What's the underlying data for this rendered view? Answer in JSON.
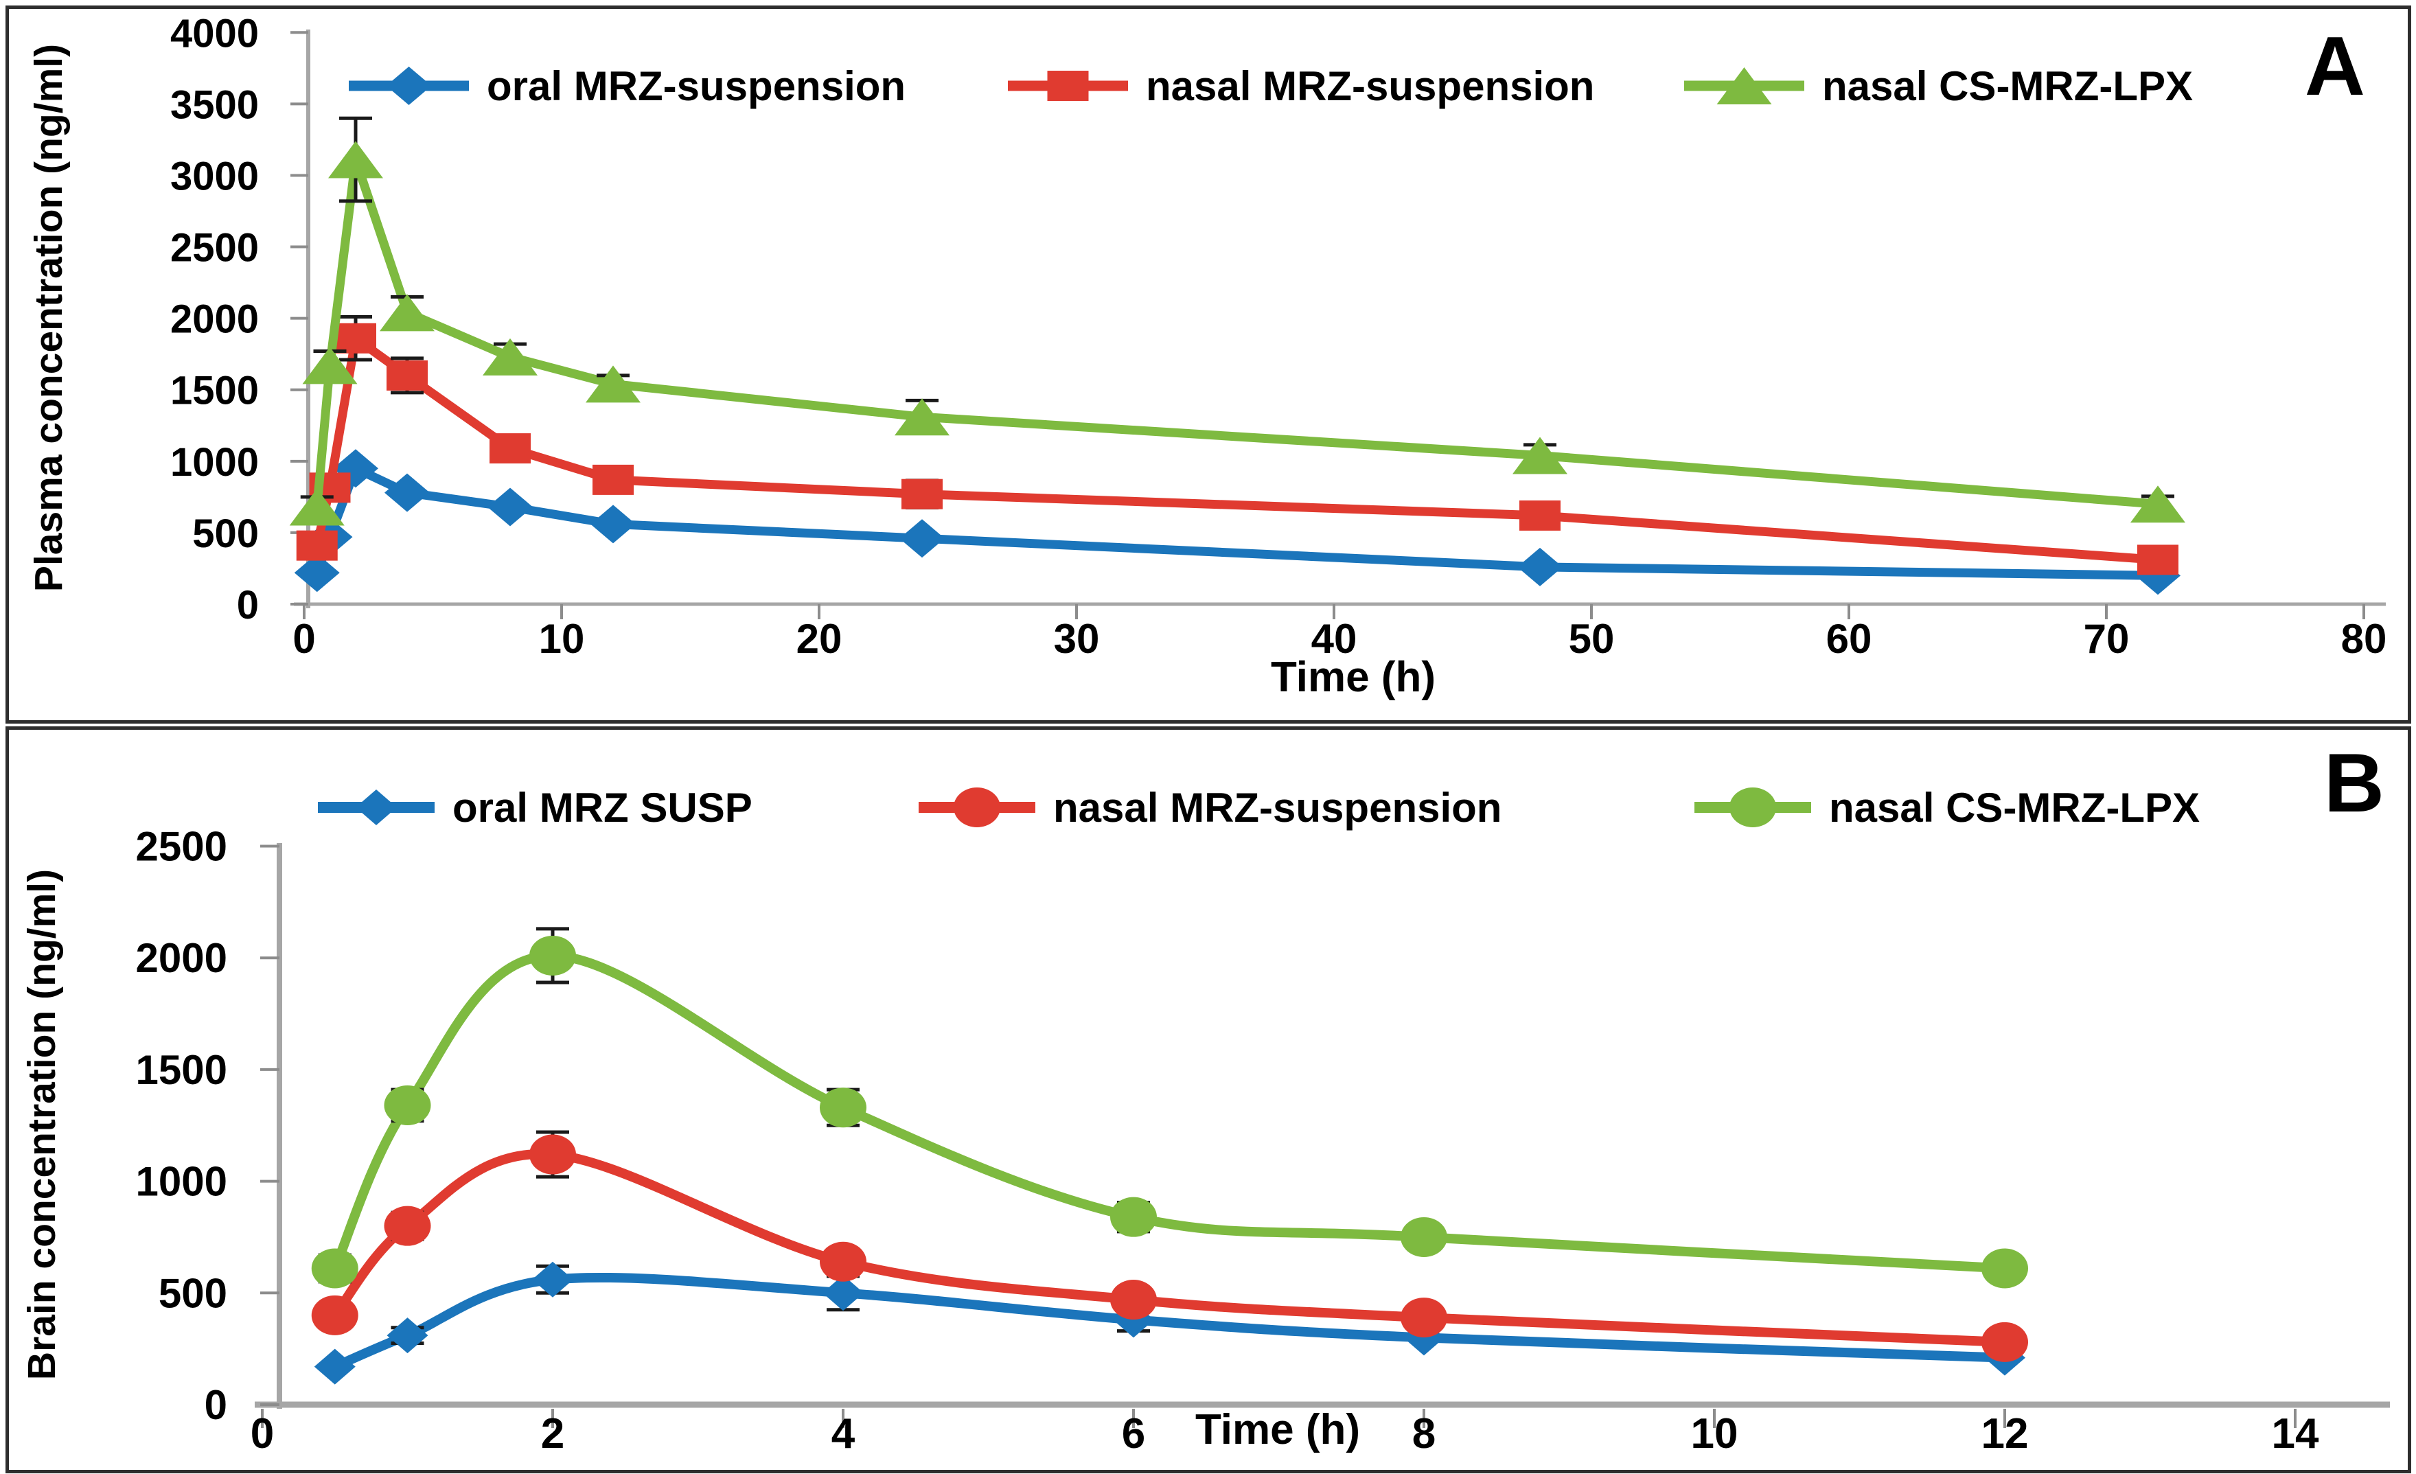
{
  "colors": {
    "blue": "#1b75bb",
    "red": "#e03b30",
    "green": "#7eba40",
    "error_bar": "#1a1a1a",
    "axis": "#a6a6a6",
    "tick": "#8c8c8c",
    "text": "#000000",
    "panel_border": "#2e2e2e",
    "background": "#ffffff"
  },
  "panels": [
    {
      "label": "A"
    },
    {
      "label": "B"
    }
  ],
  "chart_data": [
    {
      "panel": "A",
      "type": "line",
      "title": "",
      "xlabel": "Time (h)",
      "ylabel": "Plasma concentration (ng/ml)",
      "xlim": [
        0,
        80
      ],
      "ylim": [
        0,
        4000
      ],
      "x_ticks": [
        0,
        10,
        20,
        30,
        40,
        50,
        60,
        70,
        80
      ],
      "y_ticks": [
        0,
        500,
        1000,
        1500,
        2000,
        2500,
        3000,
        3500,
        4000
      ],
      "grid": false,
      "legend_position": "top",
      "x": [
        0.5,
        1,
        2,
        4,
        8,
        12,
        24,
        48,
        72
      ],
      "series": [
        {
          "name": "oral MRZ-suspension",
          "marker": "diamond",
          "color_key": "blue",
          "values": [
            220,
            470,
            950,
            780,
            680,
            560,
            460,
            260,
            200
          ],
          "errors": [
            0,
            0,
            0,
            0,
            0,
            0,
            0,
            0,
            0
          ]
        },
        {
          "name": "nasal MRZ-suspension",
          "marker": "square",
          "color_key": "red",
          "values": [
            410,
            815,
            1860,
            1600,
            1090,
            870,
            770,
            620,
            310
          ],
          "errors": [
            40,
            60,
            150,
            120,
            90,
            85,
            95,
            65,
            0
          ]
        },
        {
          "name": "nasal CS-MRZ-LPX",
          "marker": "triangle",
          "color_key": "green",
          "values": [
            680,
            1670,
            3110,
            2040,
            1730,
            1540,
            1310,
            1040,
            700
          ],
          "errors": [
            70,
            100,
            290,
            110,
            90,
            60,
            115,
            75,
            55
          ]
        }
      ]
    },
    {
      "panel": "B",
      "type": "line",
      "title": "",
      "xlabel": "Time (h)",
      "ylabel": "Brain concentration (ng/ml)",
      "xlim": [
        0,
        14
      ],
      "ylim": [
        0,
        2500
      ],
      "x_ticks": [
        0,
        2,
        4,
        6,
        8,
        10,
        12,
        14
      ],
      "y_ticks": [
        0,
        500,
        1000,
        1500,
        2000,
        2500
      ],
      "grid": false,
      "legend_position": "top",
      "x": [
        0.5,
        1,
        2,
        4,
        6,
        8,
        12
      ],
      "series": [
        {
          "name": "oral MRZ SUSP",
          "marker": "diamond",
          "color_key": "blue",
          "values": [
            170,
            310,
            560,
            500,
            380,
            300,
            210
          ],
          "errors": [
            0,
            35,
            60,
            75,
            50,
            0,
            0
          ]
        },
        {
          "name": "nasal MRZ-suspension",
          "marker": "circle",
          "color_key": "red",
          "values": [
            400,
            800,
            1120,
            640,
            470,
            390,
            280
          ],
          "errors": [
            45,
            60,
            100,
            55,
            45,
            0,
            0
          ]
        },
        {
          "name": "nasal CS-MRZ-LPX",
          "marker": "circle",
          "color_key": "green",
          "values": [
            610,
            1340,
            2010,
            1330,
            840,
            750,
            610
          ],
          "errors": [
            60,
            70,
            120,
            80,
            65,
            50,
            0
          ]
        }
      ]
    }
  ]
}
